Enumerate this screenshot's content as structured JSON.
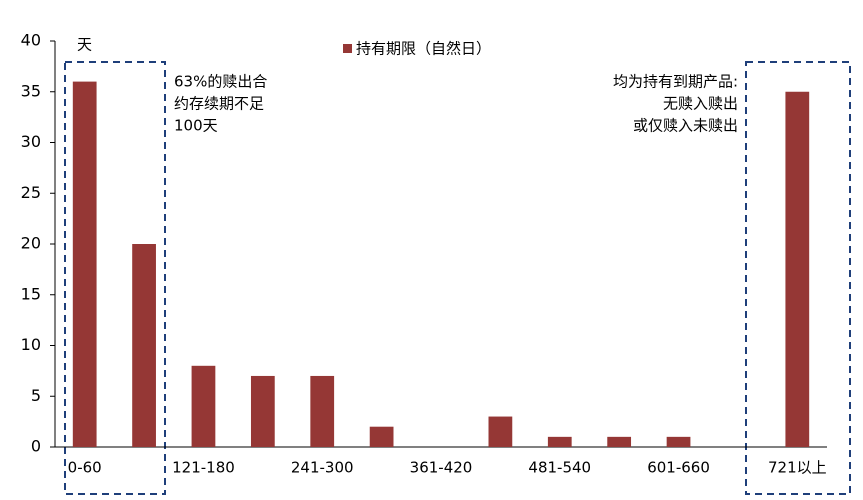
{
  "chart_data": {
    "type": "bar",
    "y_label": "天",
    "categories": [
      "0-60",
      null,
      "121-180",
      null,
      "241-300",
      null,
      "361-420",
      null,
      "481-540",
      null,
      "601-660",
      null,
      "721以上"
    ],
    "series": [
      {
        "name": "持有期限（自然日）",
        "color": "#953735",
        "values": [
          36,
          20,
          8,
          7,
          7,
          2,
          0,
          3,
          1,
          1,
          1,
          0,
          35
        ]
      }
    ],
    "ylim": [
      0,
      40
    ],
    "yticks": [
      0,
      5,
      10,
      15,
      20,
      25,
      30,
      35,
      40
    ],
    "grid": false,
    "annotations": [
      [
        "63%的赎出合",
        "约存续期不足",
        "100天"
      ],
      [
        "均为持有到期产品:",
        "无赎入赎出",
        "或仅赎入未赎出"
      ]
    ]
  }
}
